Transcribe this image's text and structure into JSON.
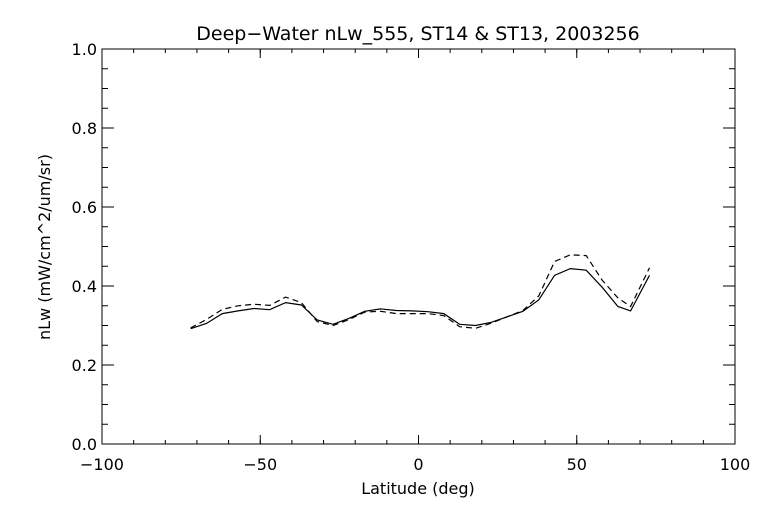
{
  "chart_data": {
    "type": "line",
    "title": "Deep−Water nLw_555, ST14 & ST13, 2003256",
    "xlabel": "Latitude (deg)",
    "ylabel": "nLw (mW/cm^2/um/sr)",
    "xlim": [
      -100,
      100
    ],
    "ylim": [
      0.0,
      1.0
    ],
    "x_ticks": [
      -100,
      -50,
      0,
      50,
      100
    ],
    "x_tick_labels": [
      "−100",
      "−50",
      "0",
      "50",
      "100"
    ],
    "y_ticks": [
      0.0,
      0.2,
      0.4,
      0.6,
      0.8,
      1.0
    ],
    "y_tick_labels": [
      "0.0",
      "0.2",
      "0.4",
      "0.6",
      "0.8",
      "1.0"
    ],
    "grid": false,
    "legend": "none",
    "series": [
      {
        "style": "solid",
        "color": "#000000",
        "points": [
          [
            -72,
            0.292
          ],
          [
            -67,
            0.305
          ],
          [
            -62,
            0.33
          ],
          [
            -57,
            0.337
          ],
          [
            -52,
            0.343
          ],
          [
            -47,
            0.34
          ],
          [
            -42,
            0.358
          ],
          [
            -37,
            0.352
          ],
          [
            -32,
            0.314
          ],
          [
            -27,
            0.303
          ],
          [
            -22,
            0.318
          ],
          [
            -17,
            0.336
          ],
          [
            -12,
            0.342
          ],
          [
            -7,
            0.338
          ],
          [
            -2,
            0.337
          ],
          [
            3,
            0.335
          ],
          [
            8,
            0.33
          ],
          [
            13,
            0.303
          ],
          [
            18,
            0.3
          ],
          [
            23,
            0.308
          ],
          [
            28,
            0.322
          ],
          [
            33,
            0.336
          ],
          [
            38,
            0.365
          ],
          [
            43,
            0.427
          ],
          [
            48,
            0.444
          ],
          [
            53,
            0.44
          ],
          [
            58,
            0.397
          ],
          [
            63,
            0.348
          ],
          [
            67,
            0.337
          ],
          [
            73,
            0.427
          ]
        ]
      },
      {
        "style": "dashed",
        "color": "#000000",
        "points": [
          [
            -72,
            0.294
          ],
          [
            -67,
            0.315
          ],
          [
            -62,
            0.341
          ],
          [
            -57,
            0.35
          ],
          [
            -52,
            0.354
          ],
          [
            -47,
            0.351
          ],
          [
            -42,
            0.372
          ],
          [
            -37,
            0.358
          ],
          [
            -32,
            0.31
          ],
          [
            -27,
            0.3
          ],
          [
            -22,
            0.315
          ],
          [
            -17,
            0.334
          ],
          [
            -12,
            0.336
          ],
          [
            -7,
            0.33
          ],
          [
            -2,
            0.33
          ],
          [
            3,
            0.33
          ],
          [
            8,
            0.325
          ],
          [
            13,
            0.297
          ],
          [
            18,
            0.293
          ],
          [
            23,
            0.306
          ],
          [
            28,
            0.322
          ],
          [
            33,
            0.338
          ],
          [
            38,
            0.375
          ],
          [
            43,
            0.462
          ],
          [
            48,
            0.479
          ],
          [
            53,
            0.477
          ],
          [
            58,
            0.415
          ],
          [
            63,
            0.37
          ],
          [
            67,
            0.348
          ],
          [
            73,
            0.446
          ]
        ]
      }
    ]
  }
}
